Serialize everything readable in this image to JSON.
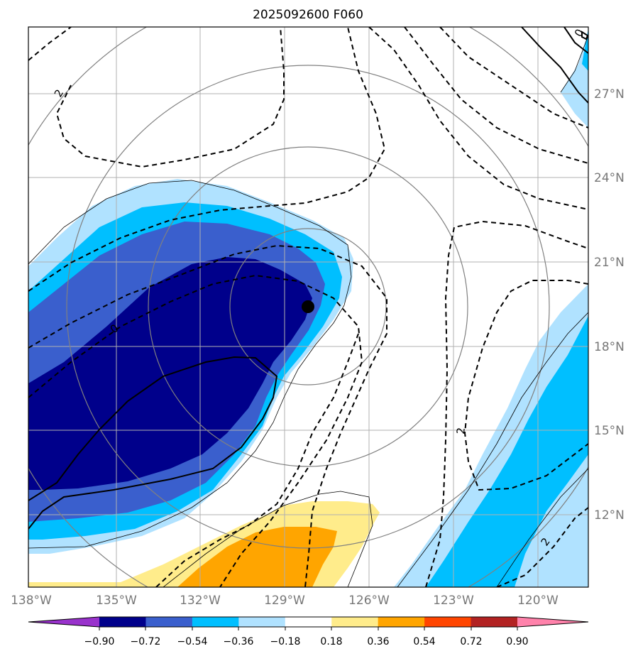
{
  "title": "2025092600 F060",
  "longitude_labels": [
    "138°W",
    "135°W",
    "132°W",
    "129°W",
    "126°W",
    "123°W",
    "120°W"
  ],
  "latitude_labels": [
    "27°N",
    "24°N",
    "21°N",
    "18°N",
    "15°N",
    "12°N"
  ],
  "contour_labels": [
    "2",
    "0",
    "2",
    "2",
    "0"
  ],
  "colorbar": {
    "tick_labels": [
      "−0.90",
      "−0.72",
      "−0.54",
      "−0.36",
      "−0.18",
      "0.18",
      "0.36",
      "0.54",
      "0.72",
      "0.90"
    ],
    "colors": [
      "#9932cc",
      "#00008b",
      "#3a5fcd",
      "#00bfff",
      "#b0e2ff",
      "#ffffff",
      "#ffec8b",
      "#ffa500",
      "#ff4500",
      "#b22222",
      "#ff82ab"
    ]
  },
  "colors": {
    "grid": "#b0b0b0",
    "range_rings": "#808080",
    "center_marker": "#000000"
  }
}
